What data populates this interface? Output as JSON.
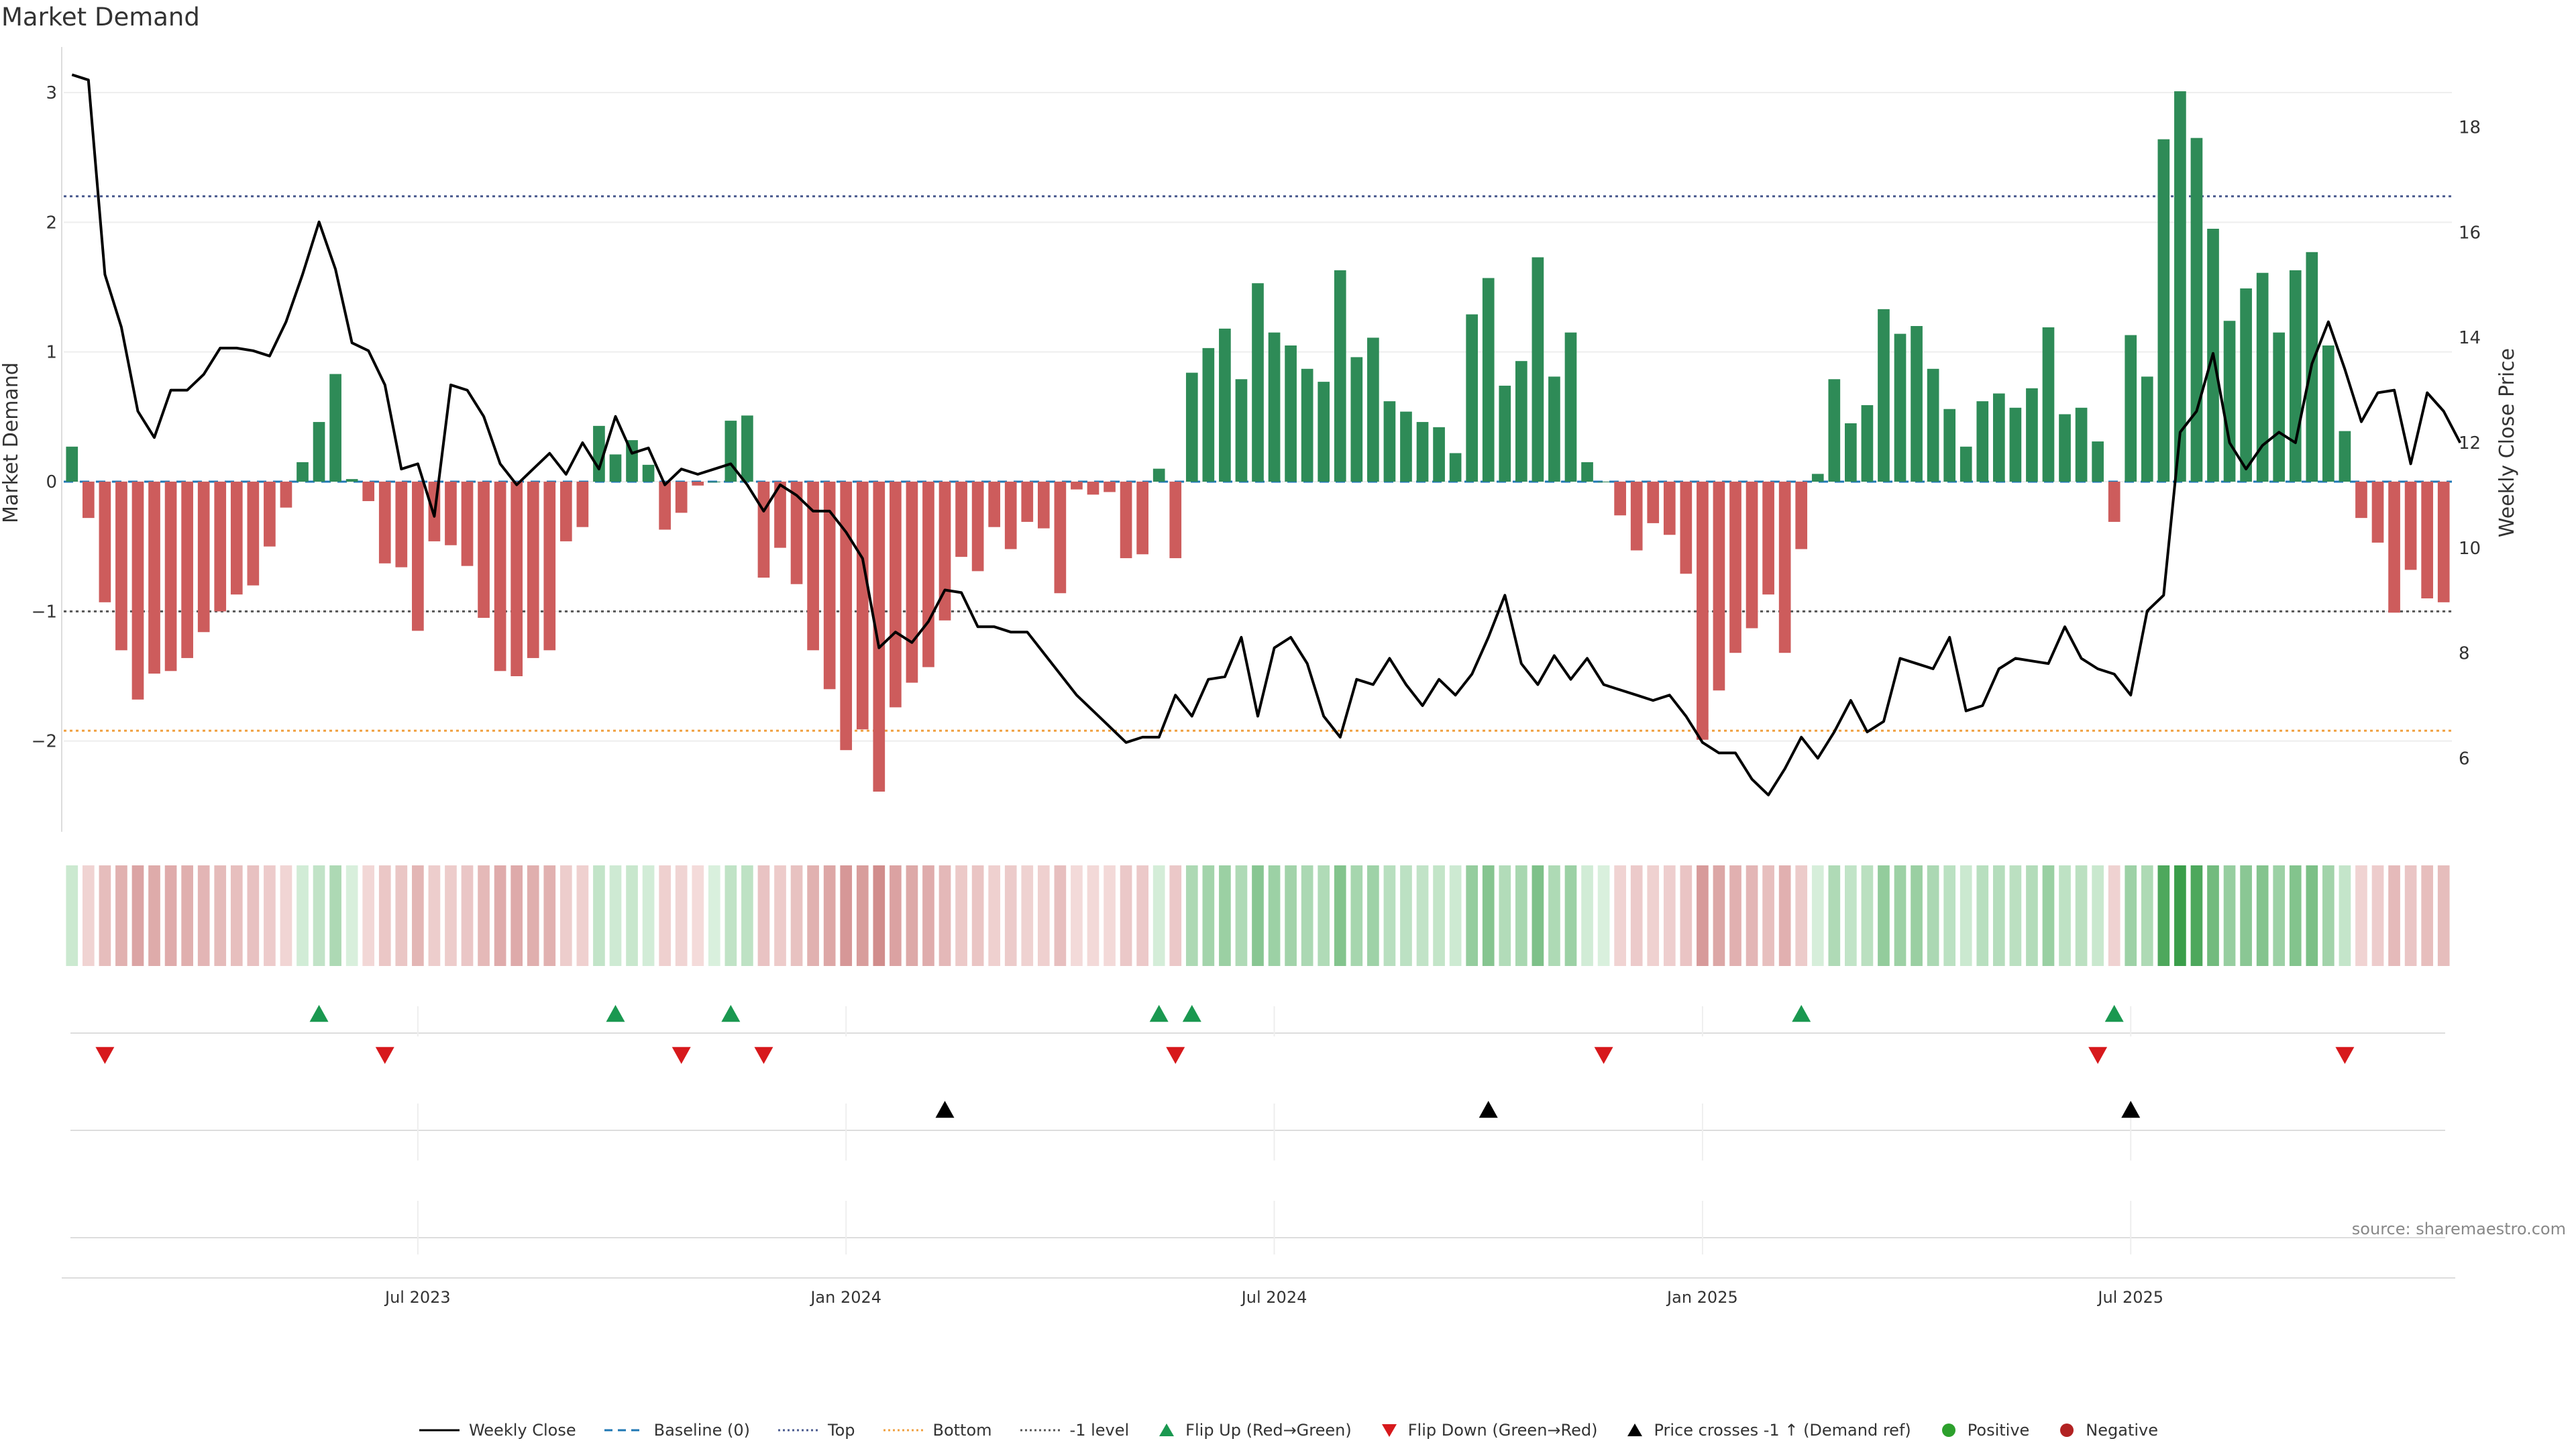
{
  "title": "Market Demand",
  "source": "source: sharemaestro.com",
  "colors": {
    "positive": "#2e8b57",
    "negative": "#cd5c5c",
    "price": "#000000",
    "baseline": "#1f77b4",
    "top": "#4b5b8f",
    "bottom": "#f0a040",
    "minus1": "#555555",
    "flip_up": "#1a9850",
    "flip_down": "#d7191c",
    "cross": "#000000",
    "dot_pos": "#2ca02c",
    "dot_neg": "#b22222"
  },
  "legend": [
    {
      "label": "Weekly Close",
      "type": "line",
      "color": "#000000",
      "dash": ""
    },
    {
      "label": "Baseline (0)",
      "type": "line",
      "color": "#1f77b4",
      "dash": "12,8"
    },
    {
      "label": "Top",
      "type": "line",
      "color": "#4b5b8f",
      "dash": "3,4"
    },
    {
      "label": "Bottom",
      "type": "line",
      "color": "#f0a040",
      "dash": "3,4"
    },
    {
      "label": "-1 level",
      "type": "line",
      "color": "#555555",
      "dash": "3,4"
    },
    {
      "label": "Flip Up (Red→Green)",
      "type": "tri-up",
      "color": "#1a9850"
    },
    {
      "label": "Flip Down (Green→Red)",
      "type": "tri-down",
      "color": "#d7191c"
    },
    {
      "label": "Price crosses -1 ↑ (Demand ref)",
      "type": "tri-up",
      "color": "#000000"
    },
    {
      "label": "Positive",
      "type": "dot",
      "color": "#2ca02c"
    },
    {
      "label": "Negative",
      "type": "dot",
      "color": "#b22222"
    }
  ],
  "chart_data": {
    "type": "bar",
    "title": "Market Demand",
    "ylabel": "Market Demand",
    "y2label": "Weekly Close Price",
    "ylim": [
      -2.7,
      3.3
    ],
    "y2lim": [
      4.6,
      19.4
    ],
    "y_ticks": [
      -2,
      -1,
      0,
      1,
      2,
      3
    ],
    "y_tick_labels": [
      "−2",
      "−1",
      "0",
      "1",
      "2",
      "3"
    ],
    "y2_ticks": [
      6,
      8,
      10,
      12,
      14,
      16,
      18
    ],
    "reference_lines": {
      "baseline": 0,
      "top": 2.2,
      "bottom": -1.92,
      "minus1": -1
    },
    "x_ticks": [
      {
        "index": 21,
        "label": "Jul 2023"
      },
      {
        "index": 47,
        "label": "Jan 2024"
      },
      {
        "index": 73,
        "label": "Jul 2024"
      },
      {
        "index": 99,
        "label": "Jan 2025"
      },
      {
        "index": 125,
        "label": "Jul 2025"
      }
    ],
    "demand": [
      0.27,
      -0.28,
      -0.93,
      -1.3,
      -1.68,
      -1.48,
      -1.46,
      -1.36,
      -1.16,
      -1.0,
      -0.87,
      -0.8,
      -0.5,
      -0.2,
      0.15,
      0.46,
      0.83,
      0.02,
      -0.15,
      -0.63,
      -0.66,
      -1.15,
      -0.46,
      -0.49,
      -0.65,
      -1.05,
      -1.46,
      -1.5,
      -1.36,
      -1.3,
      -0.46,
      -0.35,
      0.43,
      0.21,
      0.32,
      0.13,
      -0.37,
      -0.24,
      -0.03,
      0.0,
      0.47,
      0.51,
      -0.74,
      -0.51,
      -0.79,
      -1.3,
      -1.6,
      -2.07,
      -1.91,
      -2.39,
      -1.74,
      -1.55,
      -1.43,
      -1.07,
      -0.58,
      -0.69,
      -0.35,
      -0.52,
      -0.31,
      -0.36,
      -0.86,
      -0.06,
      -0.1,
      -0.08,
      -0.59,
      -0.56,
      0.1,
      -0.59,
      0.84,
      1.03,
      1.18,
      0.79,
      1.53,
      1.15,
      1.05,
      0.87,
      0.77,
      1.63,
      0.96,
      1.11,
      0.62,
      0.54,
      0.46,
      0.42,
      0.22,
      1.29,
      1.57,
      0.74,
      0.93,
      1.73,
      0.81,
      1.15,
      0.15,
      0.0,
      -0.26,
      -0.53,
      -0.32,
      -0.41,
      -0.71,
      -1.99,
      -1.61,
      -1.32,
      -1.13,
      -0.87,
      -1.32,
      -0.52,
      0.06,
      0.79,
      0.45,
      0.59,
      1.33,
      1.14,
      1.2,
      0.87,
      0.56,
      0.27,
      0.62,
      0.68,
      0.57,
      0.72,
      1.19,
      0.52,
      0.57,
      0.31,
      -0.31,
      1.13,
      0.81,
      2.64,
      3.01,
      2.65,
      1.95,
      1.24,
      1.49,
      1.61,
      1.15,
      1.63,
      1.77,
      1.05,
      0.39,
      -0.28,
      -0.47,
      -1.01,
      -0.68,
      -0.9,
      -0.93
    ],
    "price": [
      19.0,
      18.9,
      15.2,
      14.2,
      12.6,
      12.1,
      13.0,
      13.0,
      13.3,
      13.8,
      13.8,
      13.75,
      13.65,
      14.3,
      15.2,
      16.2,
      15.3,
      13.9,
      13.75,
      13.1,
      11.5,
      11.6,
      10.6,
      13.1,
      13.0,
      12.5,
      11.6,
      11.2,
      11.5,
      11.8,
      11.4,
      12.0,
      11.5,
      12.5,
      11.8,
      11.9,
      11.2,
      11.5,
      11.4,
      11.5,
      11.6,
      11.2,
      10.7,
      11.2,
      11.0,
      10.7,
      10.7,
      10.3,
      9.8,
      8.1,
      8.4,
      8.2,
      8.6,
      9.2,
      9.15,
      8.5,
      8.5,
      8.4,
      8.4,
      8.0,
      7.6,
      7.2,
      6.9,
      6.6,
      6.3,
      6.4,
      6.4,
      7.2,
      6.8,
      7.5,
      7.55,
      8.3,
      6.8,
      8.1,
      8.3,
      7.8,
      6.8,
      6.4,
      7.5,
      7.4,
      7.9,
      7.4,
      7.0,
      7.5,
      7.2,
      7.6,
      8.3,
      9.1,
      7.8,
      7.4,
      7.95,
      7.5,
      7.9,
      7.4,
      7.3,
      7.2,
      7.1,
      7.2,
      6.8,
      6.3,
      6.1,
      6.1,
      5.6,
      5.3,
      5.8,
      6.4,
      6.0,
      6.5,
      7.1,
      6.5,
      6.7,
      7.9,
      7.8,
      7.7,
      8.3,
      6.9,
      7.0,
      7.7,
      7.9,
      7.85,
      7.8,
      8.5,
      7.9,
      7.7,
      7.6,
      7.2,
      8.8,
      9.1,
      12.2,
      12.6,
      13.7,
      12.0,
      11.5,
      11.95,
      12.2,
      12.0,
      13.5,
      14.3,
      13.4,
      12.4,
      12.95,
      13.0,
      11.6,
      12.95,
      12.6,
      12.0
    ],
    "flip_up_markers": [
      15,
      33,
      40,
      66,
      68,
      105,
      124
    ],
    "flip_down_markers": [
      2,
      19,
      37,
      42,
      67,
      93,
      123,
      138
    ],
    "price_cross_markers": [
      53,
      86,
      125
    ]
  }
}
